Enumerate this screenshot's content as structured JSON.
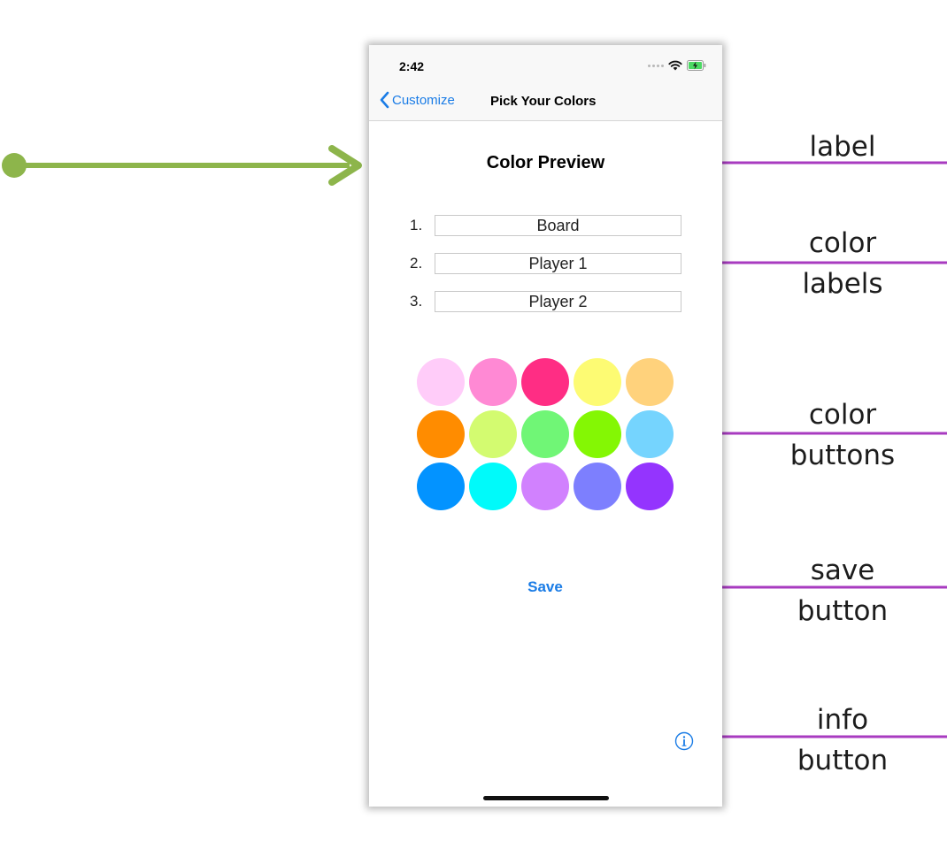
{
  "status_bar": {
    "time": "2:42"
  },
  "nav": {
    "back_label": "Customize",
    "title": "Pick Your Colors"
  },
  "preview": {
    "title": "Color Preview"
  },
  "color_rows": [
    {
      "number": "1.",
      "label": "Board"
    },
    {
      "number": "2.",
      "label": "Player 1"
    },
    {
      "number": "3.",
      "label": "Player 2"
    }
  ],
  "swatch_colors": [
    "#ffccf9",
    "#ff89d4",
    "#ff2d84",
    "#fdfb73",
    "#ffd27c",
    "#ff8c00",
    "#d3fb70",
    "#70f676",
    "#84f704",
    "#75d4fe",
    "#0393ff",
    "#00fafa",
    "#d181fe",
    "#7d7ffe",
    "#9434fe"
  ],
  "save": {
    "label": "Save"
  },
  "annotations": {
    "label": [
      "label"
    ],
    "color_labels": [
      "color",
      "labels"
    ],
    "color_buttons": [
      "color",
      "buttons"
    ],
    "save_button": [
      "save",
      "button"
    ],
    "info_button": [
      "info",
      "button"
    ]
  },
  "colors": {
    "accent_green": "#8db54b",
    "annotation_purple": "#a83bc0",
    "ios_blue": "#1a7ce6"
  }
}
